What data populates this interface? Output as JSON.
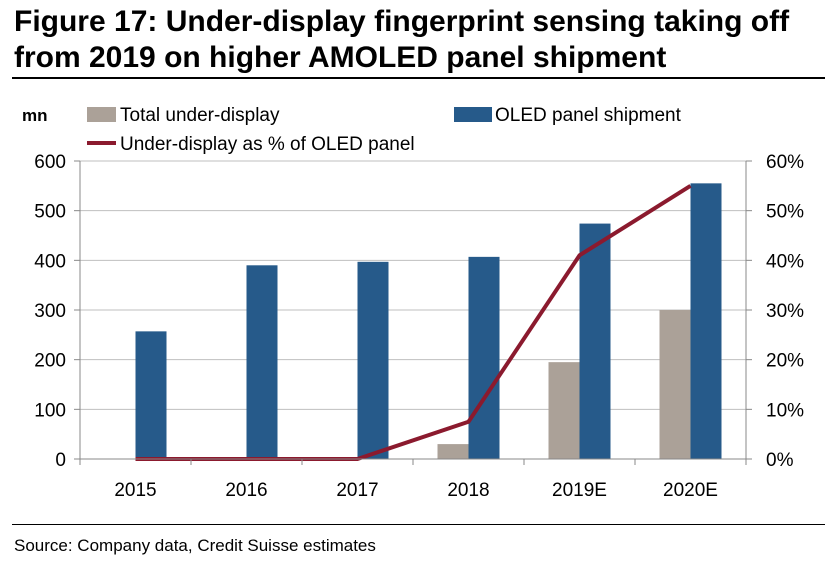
{
  "title": "Figure 17: Under-display fingerprint sensing taking off from 2019 on higher AMOLED panel shipment",
  "source": "Source: Company data, Credit Suisse estimates",
  "colors": {
    "total_bar": "#aba198",
    "oled_bar": "#265a8a",
    "pct_line": "#8b1a2e",
    "grid": "#bfbfbf",
    "axis": "#888888"
  },
  "chart_data": {
    "type": "bar",
    "categories": [
      "2015",
      "2016",
      "2017",
      "2018",
      "2019E",
      "2020E"
    ],
    "series": [
      {
        "name": "Total under-display",
        "axis": "left",
        "kind": "bar",
        "values": [
          0,
          0,
          0,
          30,
          195,
          300
        ]
      },
      {
        "name": "OLED panel shipment",
        "axis": "left",
        "kind": "bar",
        "values": [
          257,
          390,
          397,
          407,
          474,
          555
        ]
      },
      {
        "name": "Under-display as % of OLED panel",
        "axis": "right",
        "kind": "line",
        "values": [
          0,
          0,
          0,
          7.5,
          41,
          55
        ]
      }
    ],
    "left_axis": {
      "unit_label": "mn",
      "min": 0,
      "max": 600,
      "ticks": [
        "0",
        "100",
        "200",
        "300",
        "400",
        "500",
        "600"
      ]
    },
    "right_axis": {
      "min": 0,
      "max": 60,
      "ticks": [
        "0%",
        "10%",
        "20%",
        "30%",
        "40%",
        "50%",
        "60%"
      ]
    },
    "grid": true,
    "legend_position": "top"
  }
}
